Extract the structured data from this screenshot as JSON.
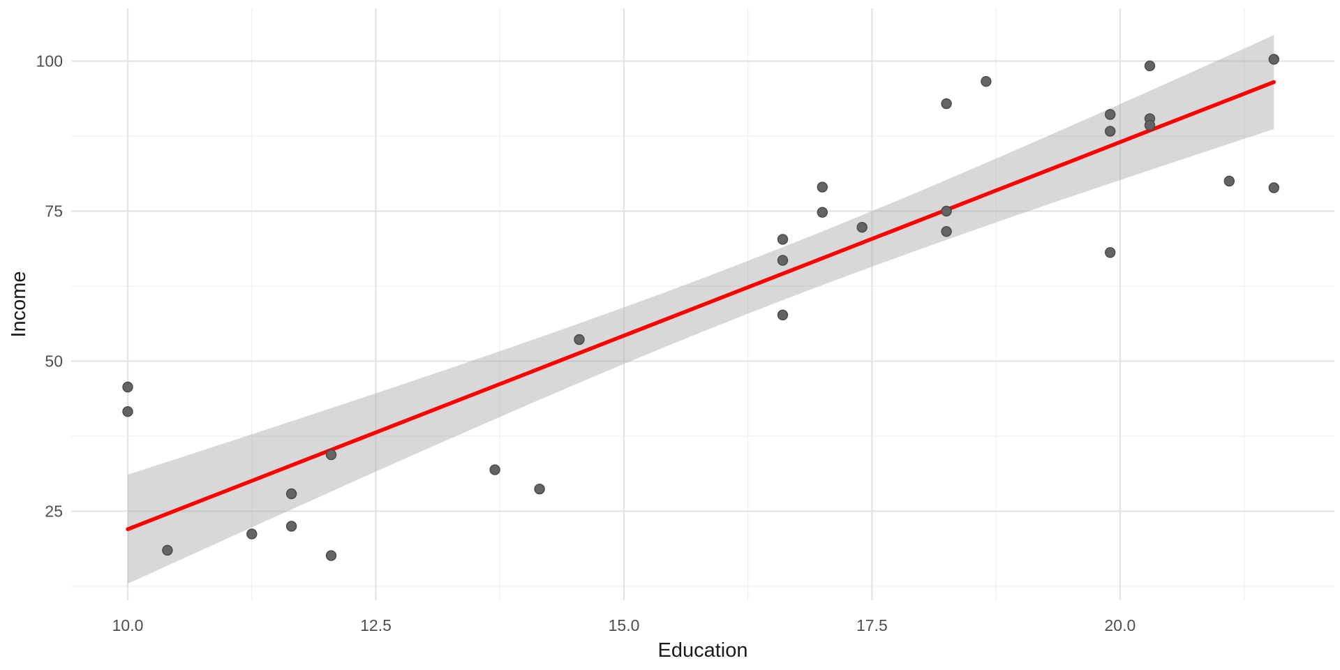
{
  "figure": {
    "background": "#ffffff"
  },
  "chart_data": {
    "type": "scatter",
    "title": "",
    "xlabel": "Education",
    "ylabel": "Income",
    "legend": "none",
    "grid": "on",
    "xlim": [
      9.43,
      22.16
    ],
    "ylim": [
      10.17,
      108.78
    ],
    "x_major_ticks": [
      10.0,
      12.5,
      15.0,
      17.5,
      20.0
    ],
    "x_tick_labels": [
      "10.0",
      "12.5",
      "15.0",
      "17.5",
      "20.0"
    ],
    "x_minor_ticks": [
      11.25,
      13.75,
      16.25,
      18.75,
      21.25
    ],
    "y_major_ticks": [
      25,
      50,
      75,
      100
    ],
    "y_tick_labels": [
      "25",
      "50",
      "75",
      "100"
    ],
    "y_minor_ticks": [
      12.5,
      37.5,
      62.5,
      87.5
    ],
    "points": [
      [
        10.0,
        45.7
      ],
      [
        10.0,
        41.6
      ],
      [
        10.4,
        18.5
      ],
      [
        11.25,
        21.2
      ],
      [
        11.65,
        22.5
      ],
      [
        11.65,
        27.9
      ],
      [
        12.05,
        34.4
      ],
      [
        12.05,
        17.6
      ],
      [
        13.7,
        31.9
      ],
      [
        14.15,
        28.7
      ],
      [
        14.55,
        53.6
      ],
      [
        16.6,
        70.3
      ],
      [
        16.6,
        66.8
      ],
      [
        16.6,
        57.7
      ],
      [
        17.0,
        79.0
      ],
      [
        17.0,
        74.8
      ],
      [
        17.4,
        72.3
      ],
      [
        18.25,
        92.9
      ],
      [
        18.25,
        75.0
      ],
      [
        18.25,
        71.6
      ],
      [
        18.65,
        96.6
      ],
      [
        19.9,
        91.1
      ],
      [
        19.9,
        88.3
      ],
      [
        19.9,
        68.1
      ],
      [
        20.3,
        99.2
      ],
      [
        20.3,
        90.4
      ],
      [
        20.3,
        89.3
      ],
      [
        21.1,
        80.0
      ],
      [
        21.55,
        100.3
      ],
      [
        21.55,
        78.9
      ]
    ],
    "regression_line": {
      "slope": 6.45,
      "intercept": -42.5,
      "x_start": 10.0,
      "x_end": 21.55
    },
    "ci_band": {
      "center_x": 16.36,
      "min_half_width": 4.4,
      "half_width_slope": 1.25,
      "x_start": 10.0,
      "x_end": 21.55
    },
    "style": {
      "point_fill": "#646464",
      "point_stroke": "#484848",
      "point_radius": 7,
      "line_color": "#ff0000",
      "line_width": 5.5,
      "band_fill": "#a9a9a9",
      "band_opacity": 0.45,
      "grid_major_color": "#e3e3e3",
      "grid_minor_color": "#efefef",
      "tick_label_color": "#4d4d4d",
      "axis_title_color": "#1a1a1a"
    }
  }
}
